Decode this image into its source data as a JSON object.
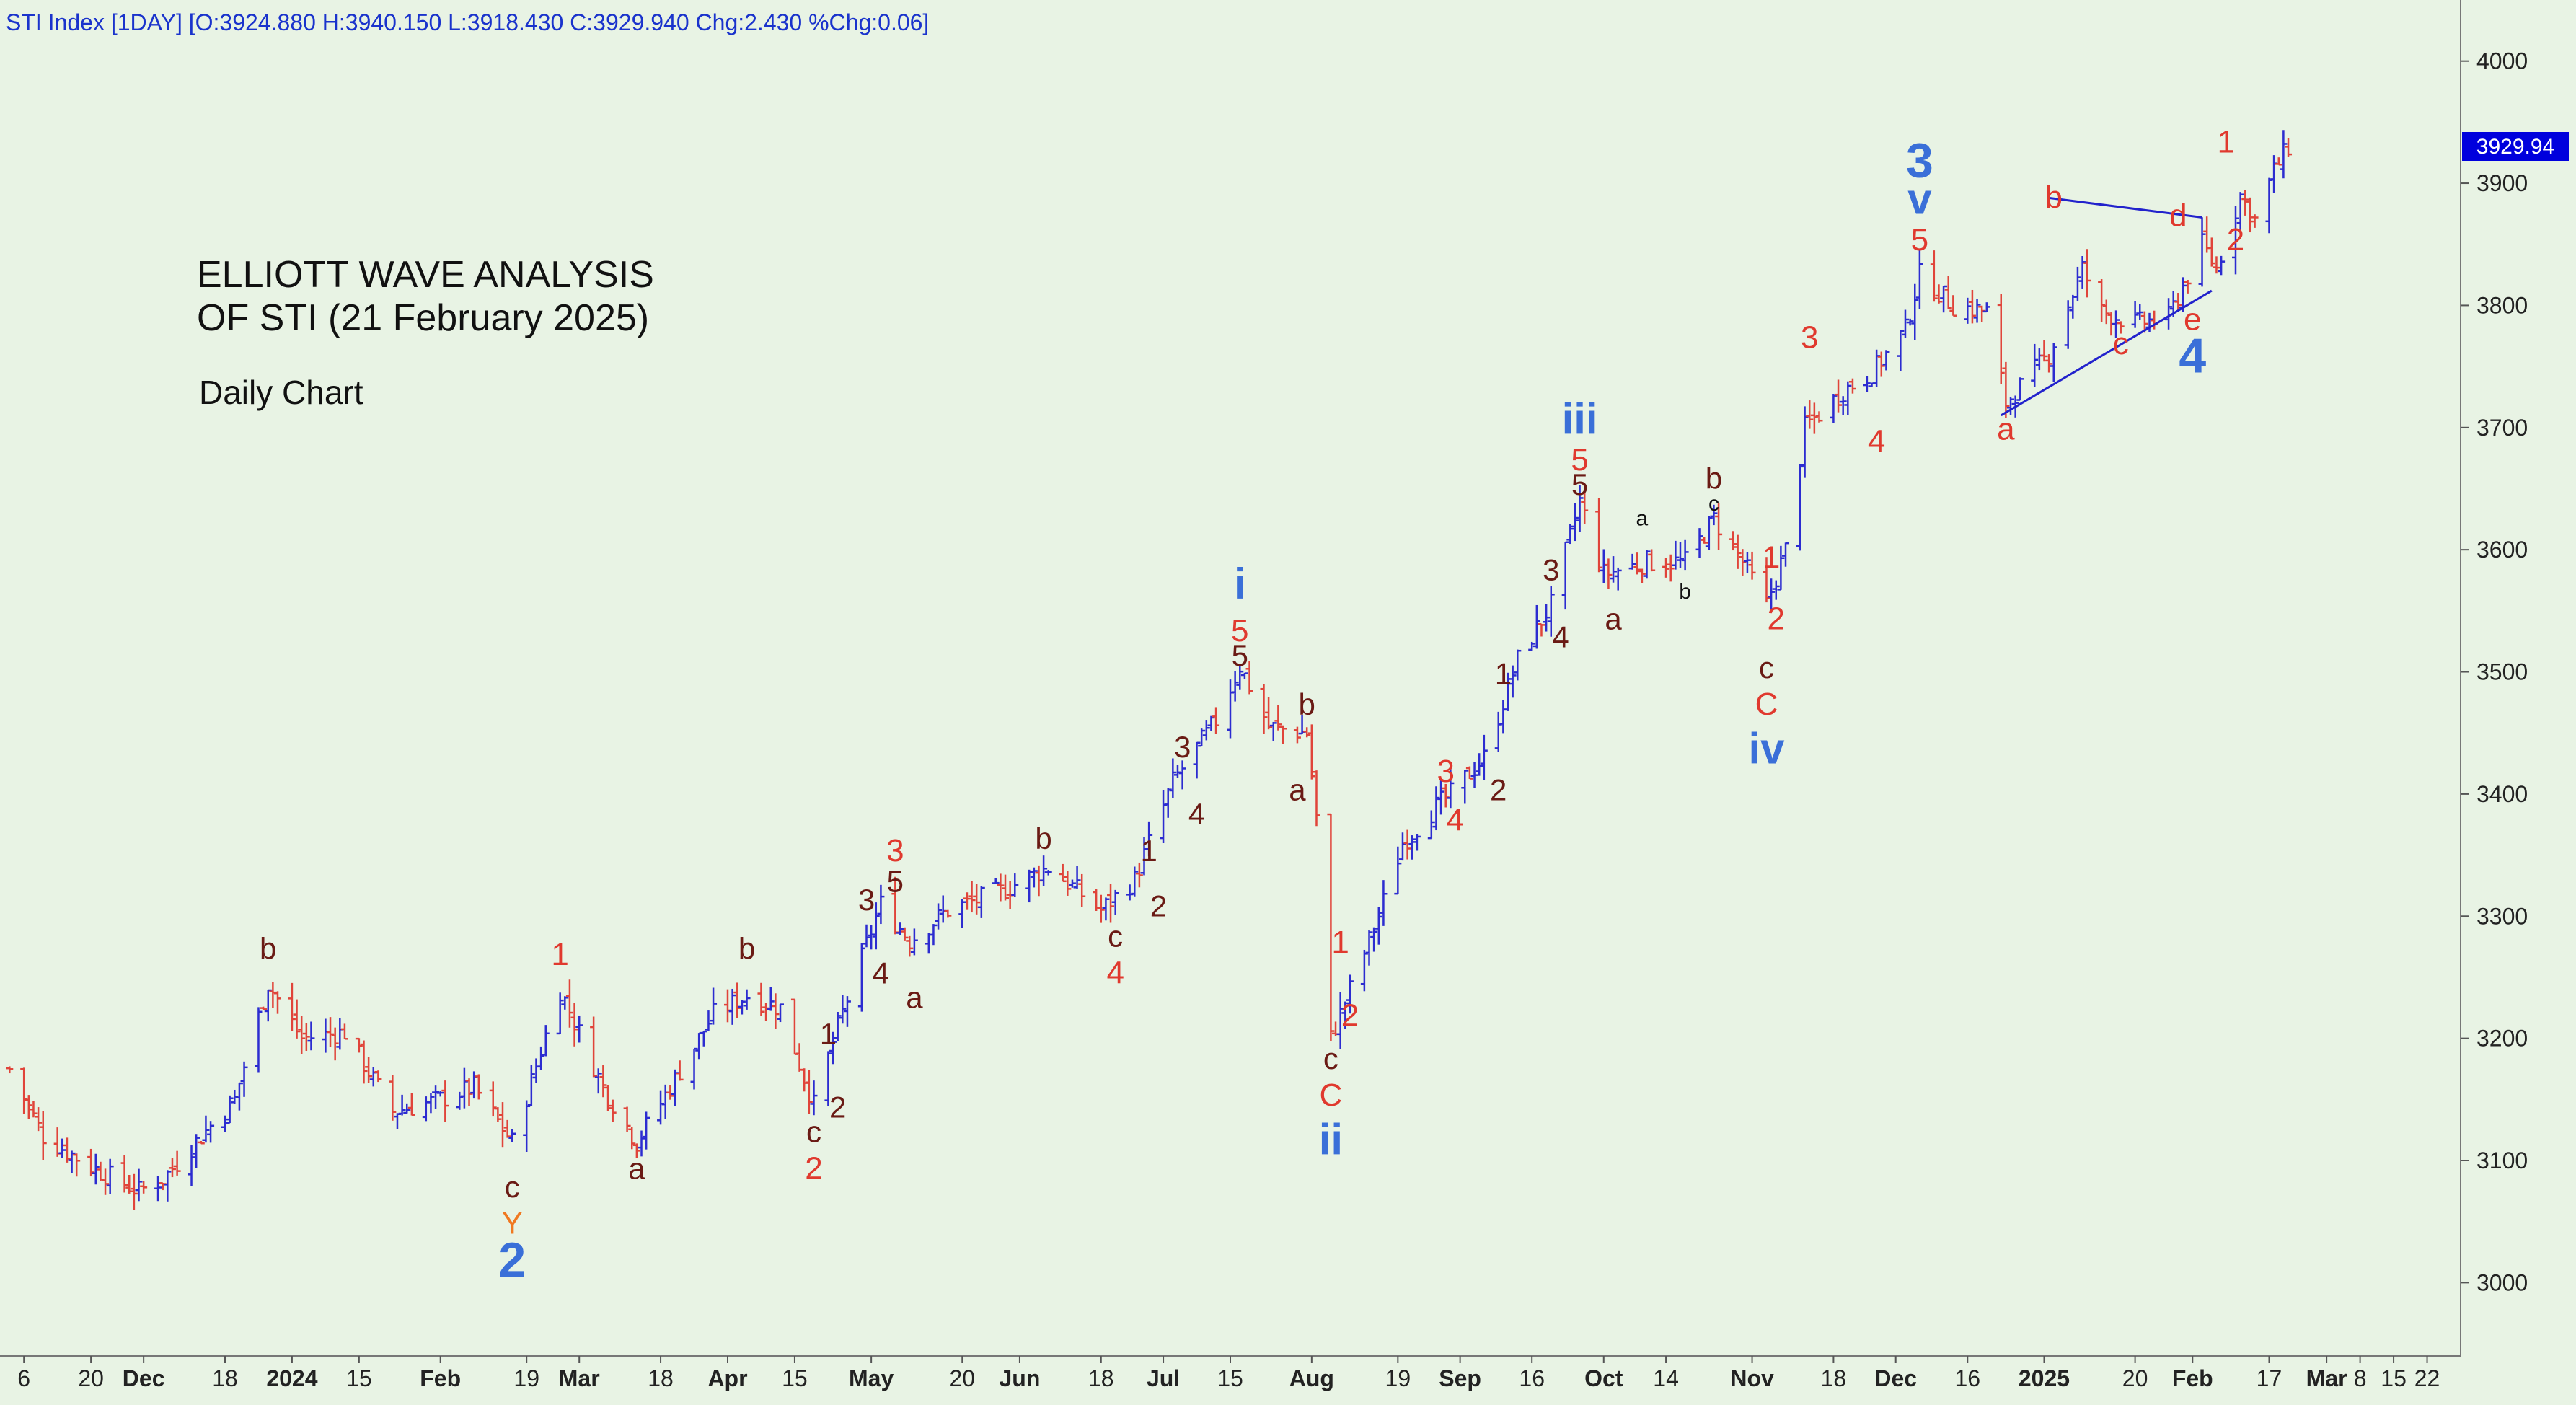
{
  "header": "STI Index [1DAY] [O:3924.880 H:3940.150 L:3918.430 C:3929.940 Chg:2.430 %Chg:0.06]",
  "title_lines": [
    "ELLIOTT WAVE ANALYSIS",
    "OF STI (21 February 2025)"
  ],
  "subtitle": "Daily Chart",
  "last_price_label": "3929.94",
  "colors": {
    "background": "#e8f3e4",
    "up": "#2c2cd0",
    "down": "#e0443a",
    "blue_label": "#3a6fd8",
    "red_label": "#e0392e",
    "dark_label": "#6a1a14",
    "orange_label": "#f07820",
    "trend": "#2222cc"
  },
  "chart_data": {
    "type": "ohlc",
    "ylim": [
      2940,
      4050
    ],
    "y_ticks": [
      3000,
      3100,
      3200,
      3300,
      3400,
      3500,
      3600,
      3700,
      3800,
      3900,
      4000
    ],
    "x_tick_labels": [
      {
        "date": "2023-11-06",
        "label": "6"
      },
      {
        "date": "2023-11-20",
        "label": "20"
      },
      {
        "date": "2023-12-01",
        "label": "Dec",
        "bold": true
      },
      {
        "date": "2023-12-18",
        "label": "18"
      },
      {
        "date": "2024-01-01",
        "label": "2024",
        "bold": true
      },
      {
        "date": "2024-01-15",
        "label": "15"
      },
      {
        "date": "2024-02-01",
        "label": "Feb",
        "bold": true
      },
      {
        "date": "2024-02-19",
        "label": "19"
      },
      {
        "date": "2024-03-01",
        "label": "Mar",
        "bold": true
      },
      {
        "date": "2024-03-18",
        "label": "18"
      },
      {
        "date": "2024-04-01",
        "label": "Apr",
        "bold": true
      },
      {
        "date": "2024-04-15",
        "label": "15"
      },
      {
        "date": "2024-05-01",
        "label": "May",
        "bold": true
      },
      {
        "date": "2024-05-20",
        "label": "20"
      },
      {
        "date": "2024-06-01",
        "label": "Jun",
        "bold": true
      },
      {
        "date": "2024-06-18",
        "label": "18"
      },
      {
        "date": "2024-07-01",
        "label": "Jul",
        "bold": true
      },
      {
        "date": "2024-07-15",
        "label": "15"
      },
      {
        "date": "2024-08-01",
        "label": "Aug",
        "bold": true
      },
      {
        "date": "2024-08-19",
        "label": "19"
      },
      {
        "date": "2024-09-01",
        "label": "Sep",
        "bold": true
      },
      {
        "date": "2024-09-16",
        "label": "16"
      },
      {
        "date": "2024-10-01",
        "label": "Oct",
        "bold": true
      },
      {
        "date": "2024-10-14",
        "label": "14"
      },
      {
        "date": "2024-11-01",
        "label": "Nov",
        "bold": true
      },
      {
        "date": "2024-11-18",
        "label": "18"
      },
      {
        "date": "2024-12-01",
        "label": "Dec",
        "bold": true
      },
      {
        "date": "2024-12-16",
        "label": "16"
      },
      {
        "date": "2025-01-01",
        "label": "2025",
        "bold": true
      },
      {
        "date": "2025-01-20",
        "label": "20"
      },
      {
        "date": "2025-02-01",
        "label": "Feb",
        "bold": true
      },
      {
        "date": "2025-02-17",
        "label": "17"
      },
      {
        "date": "2025-03-01",
        "label": "Mar",
        "bold": true
      },
      {
        "date": "2025-03-08",
        "label": "8"
      },
      {
        "date": "2025-03-15",
        "label": "15"
      },
      {
        "date": "2025-03-22",
        "label": "22"
      }
    ],
    "price_path": [
      [
        "2023-11-03",
        3175
      ],
      [
        "2023-11-10",
        3120
      ],
      [
        "2023-11-20",
        3095
      ],
      [
        "2023-11-30",
        3075
      ],
      [
        "2023-12-05",
        3085
      ],
      [
        "2023-12-13",
        3120
      ],
      [
        "2023-12-20",
        3150
      ],
      [
        "2023-12-27",
        3245
      ],
      [
        "2024-01-03",
        3200
      ],
      [
        "2024-01-12",
        3205
      ],
      [
        "2024-01-22",
        3140
      ],
      [
        "2024-02-01",
        3150
      ],
      [
        "2024-02-08",
        3160
      ],
      [
        "2024-02-16",
        3115
      ],
      [
        "2024-02-26",
        3240
      ],
      [
        "2024-03-06",
        3160
      ],
      [
        "2024-03-13",
        3115
      ],
      [
        "2024-03-20",
        3160
      ],
      [
        "2024-03-29",
        3220
      ],
      [
        "2024-04-05",
        3235
      ],
      [
        "2024-04-12",
        3225
      ],
      [
        "2024-04-19",
        3145
      ],
      [
        "2024-04-24",
        3210
      ],
      [
        "2024-05-03",
        3310
      ],
      [
        "2024-05-09",
        3280
      ],
      [
        "2024-05-17",
        3305
      ],
      [
        "2024-05-28",
        3320
      ],
      [
        "2024-06-07",
        3340
      ],
      [
        "2024-06-18",
        3305
      ],
      [
        "2024-06-25",
        3330
      ],
      [
        "2024-07-03",
        3410
      ],
      [
        "2024-07-12",
        3460
      ],
      [
        "2024-07-17",
        3505
      ],
      [
        "2024-07-23",
        3455
      ],
      [
        "2024-07-31",
        3450
      ],
      [
        "2024-08-02",
        3380
      ],
      [
        "2024-08-05",
        3200
      ],
      [
        "2024-08-09",
        3240
      ],
      [
        "2024-08-15",
        3300
      ],
      [
        "2024-08-20",
        3360
      ],
      [
        "2024-08-27",
        3390
      ],
      [
        "2024-08-30",
        3400
      ],
      [
        "2024-09-06",
        3430
      ],
      [
        "2024-09-13",
        3510
      ],
      [
        "2024-09-20",
        3555
      ],
      [
        "2024-09-26",
        3640
      ],
      [
        "2024-10-01",
        3580
      ],
      [
        "2024-10-10",
        3590
      ],
      [
        "2024-10-18",
        3590
      ],
      [
        "2024-10-24",
        3625
      ],
      [
        "2024-10-30",
        3590
      ],
      [
        "2024-11-04",
        3555
      ],
      [
        "2024-11-08",
        3600
      ],
      [
        "2024-11-12",
        3700
      ],
      [
        "2024-11-20",
        3730
      ],
      [
        "2024-11-26",
        3745
      ],
      [
        "2024-12-03",
        3780
      ],
      [
        "2024-12-06",
        3825
      ],
      [
        "2024-12-13",
        3800
      ],
      [
        "2024-12-20",
        3795
      ],
      [
        "2024-12-24",
        3720
      ],
      [
        "2025-01-02",
        3760
      ],
      [
        "2025-01-09",
        3830
      ],
      [
        "2025-01-13",
        3795
      ],
      [
        "2025-01-20",
        3785
      ],
      [
        "2025-01-27",
        3790
      ],
      [
        "2025-02-03",
        3850
      ],
      [
        "2025-02-06",
        3830
      ],
      [
        "2025-02-11",
        3890
      ],
      [
        "2025-02-14",
        3870
      ],
      [
        "2025-02-18",
        3910
      ],
      [
        "2025-02-21",
        3930
      ]
    ],
    "price_path_units": "date, approximate close in index points",
    "annotations": [
      {
        "date": "2024-02-16",
        "price": 3070,
        "text": "c",
        "color": "dark"
      },
      {
        "date": "2024-02-16",
        "price": 3040,
        "text": "Y",
        "color": "orange"
      },
      {
        "date": "2024-02-16",
        "price": 3005,
        "text": "2",
        "color": "blue",
        "big": true
      },
      {
        "date": "2023-12-27",
        "price": 3265,
        "text": "b",
        "color": "dark"
      },
      {
        "date": "2024-02-26",
        "price": 3260,
        "text": "1",
        "color": "red"
      },
      {
        "date": "2024-03-13",
        "price": 3085,
        "text": "a",
        "color": "dark"
      },
      {
        "date": "2024-04-05",
        "price": 3265,
        "text": "b",
        "color": "dark"
      },
      {
        "date": "2024-04-19",
        "price": 3115,
        "text": "c",
        "color": "dark"
      },
      {
        "date": "2024-04-19",
        "price": 3085,
        "text": "2",
        "color": "red"
      },
      {
        "date": "2024-04-22",
        "price": 3195,
        "text": "1",
        "color": "dark"
      },
      {
        "date": "2024-04-24",
        "price": 3135,
        "text": "2",
        "color": "dark"
      },
      {
        "date": "2024-04-30",
        "price": 3305,
        "text": "3",
        "color": "dark"
      },
      {
        "date": "2024-05-03",
        "price": 3245,
        "text": "4",
        "color": "dark"
      },
      {
        "date": "2024-05-06",
        "price": 3320,
        "text": "5",
        "color": "dark"
      },
      {
        "date": "2024-05-06",
        "price": 3345,
        "text": "3",
        "color": "red"
      },
      {
        "date": "2024-05-10",
        "price": 3225,
        "text": "a",
        "color": "dark"
      },
      {
        "date": "2024-06-06",
        "price": 3355,
        "text": "b",
        "color": "dark"
      },
      {
        "date": "2024-06-21",
        "price": 3275,
        "text": "c",
        "color": "dark"
      },
      {
        "date": "2024-06-21",
        "price": 3245,
        "text": "4",
        "color": "red"
      },
      {
        "date": "2024-06-28",
        "price": 3345,
        "text": "1",
        "color": "dark"
      },
      {
        "date": "2024-06-30",
        "price": 3300,
        "text": "2",
        "color": "dark"
      },
      {
        "date": "2024-07-05",
        "price": 3430,
        "text": "3",
        "color": "dark"
      },
      {
        "date": "2024-07-08",
        "price": 3375,
        "text": "4",
        "color": "dark"
      },
      {
        "date": "2024-07-17",
        "price": 3505,
        "text": "5",
        "color": "dark"
      },
      {
        "date": "2024-07-17",
        "price": 3525,
        "text": "5",
        "color": "red"
      },
      {
        "date": "2024-07-17",
        "price": 3560,
        "text": "i",
        "color": "blue"
      },
      {
        "date": "2024-07-29",
        "price": 3395,
        "text": "a",
        "color": "dark"
      },
      {
        "date": "2024-07-31",
        "price": 3465,
        "text": "b",
        "color": "dark"
      },
      {
        "date": "2024-08-05",
        "price": 3175,
        "text": "c",
        "color": "dark"
      },
      {
        "date": "2024-08-05",
        "price": 3145,
        "text": "C",
        "color": "red"
      },
      {
        "date": "2024-08-05",
        "price": 3105,
        "text": "ii",
        "color": "blue"
      },
      {
        "date": "2024-08-07",
        "price": 3270,
        "text": "1",
        "color": "red"
      },
      {
        "date": "2024-08-09",
        "price": 3210,
        "text": "2",
        "color": "red"
      },
      {
        "date": "2024-08-29",
        "price": 3410,
        "text": "3",
        "color": "red"
      },
      {
        "date": "2024-08-31",
        "price": 3370,
        "text": "4",
        "color": "red"
      },
      {
        "date": "2024-09-09",
        "price": 3395,
        "text": "2",
        "color": "dark"
      },
      {
        "date": "2024-09-10",
        "price": 3490,
        "text": "1",
        "color": "dark"
      },
      {
        "date": "2024-09-20",
        "price": 3575,
        "text": "3",
        "color": "dark"
      },
      {
        "date": "2024-09-22",
        "price": 3520,
        "text": "4",
        "color": "dark"
      },
      {
        "date": "2024-09-26",
        "price": 3645,
        "text": "5",
        "color": "dark"
      },
      {
        "date": "2024-09-26",
        "price": 3665,
        "text": "5",
        "color": "red"
      },
      {
        "date": "2024-09-26",
        "price": 3695,
        "text": "iii",
        "color": "blue"
      },
      {
        "date": "2024-10-03",
        "price": 3535,
        "text": "a",
        "color": "dark"
      },
      {
        "date": "2024-10-09",
        "price": 3620,
        "text": "a",
        "color": "black",
        "small": true
      },
      {
        "date": "2024-10-18",
        "price": 3560,
        "text": "b",
        "color": "black",
        "small": true
      },
      {
        "date": "2024-10-24",
        "price": 3650,
        "text": "b",
        "color": "dark"
      },
      {
        "date": "2024-10-24",
        "price": 3632,
        "text": "c",
        "color": "black",
        "small": true
      },
      {
        "date": "2024-11-04",
        "price": 3495,
        "text": "c",
        "color": "dark"
      },
      {
        "date": "2024-11-04",
        "price": 3465,
        "text": "C",
        "color": "red"
      },
      {
        "date": "2024-11-04",
        "price": 3425,
        "text": "iv",
        "color": "blue"
      },
      {
        "date": "2024-11-05",
        "price": 3585,
        "text": "1",
        "color": "red"
      },
      {
        "date": "2024-11-06",
        "price": 3535,
        "text": "2",
        "color": "red"
      },
      {
        "date": "2024-11-13",
        "price": 3765,
        "text": "3",
        "color": "red"
      },
      {
        "date": "2024-11-27",
        "price": 3680,
        "text": "4",
        "color": "red"
      },
      {
        "date": "2024-12-06",
        "price": 3845,
        "text": "5",
        "color": "red"
      },
      {
        "date": "2024-12-06",
        "price": 3875,
        "text": "v",
        "color": "blue"
      },
      {
        "date": "2024-12-06",
        "price": 3905,
        "text": "3",
        "color": "blue",
        "big": true
      },
      {
        "date": "2024-12-24",
        "price": 3690,
        "text": "a",
        "color": "red"
      },
      {
        "date": "2025-01-03",
        "price": 3880,
        "text": "b",
        "color": "red"
      },
      {
        "date": "2025-01-17",
        "price": 3760,
        "text": "c",
        "color": "red"
      },
      {
        "date": "2025-01-29",
        "price": 3865,
        "text": "d",
        "color": "red"
      },
      {
        "date": "2025-02-01",
        "price": 3780,
        "text": "e",
        "color": "red"
      },
      {
        "date": "2025-02-01",
        "price": 3745,
        "text": "4",
        "color": "blue",
        "big": true
      },
      {
        "date": "2025-02-08",
        "price": 3925,
        "text": "1",
        "color": "red"
      },
      {
        "date": "2025-02-10",
        "price": 3845,
        "text": "2",
        "color": "red"
      }
    ],
    "trendlines": [
      {
        "from": [
          "2024-12-23",
          3710
        ],
        "to": [
          "2025-02-05",
          3812
        ]
      },
      {
        "from": [
          "2025-01-02",
          3888
        ],
        "to": [
          "2025-02-03",
          3872
        ]
      }
    ]
  }
}
